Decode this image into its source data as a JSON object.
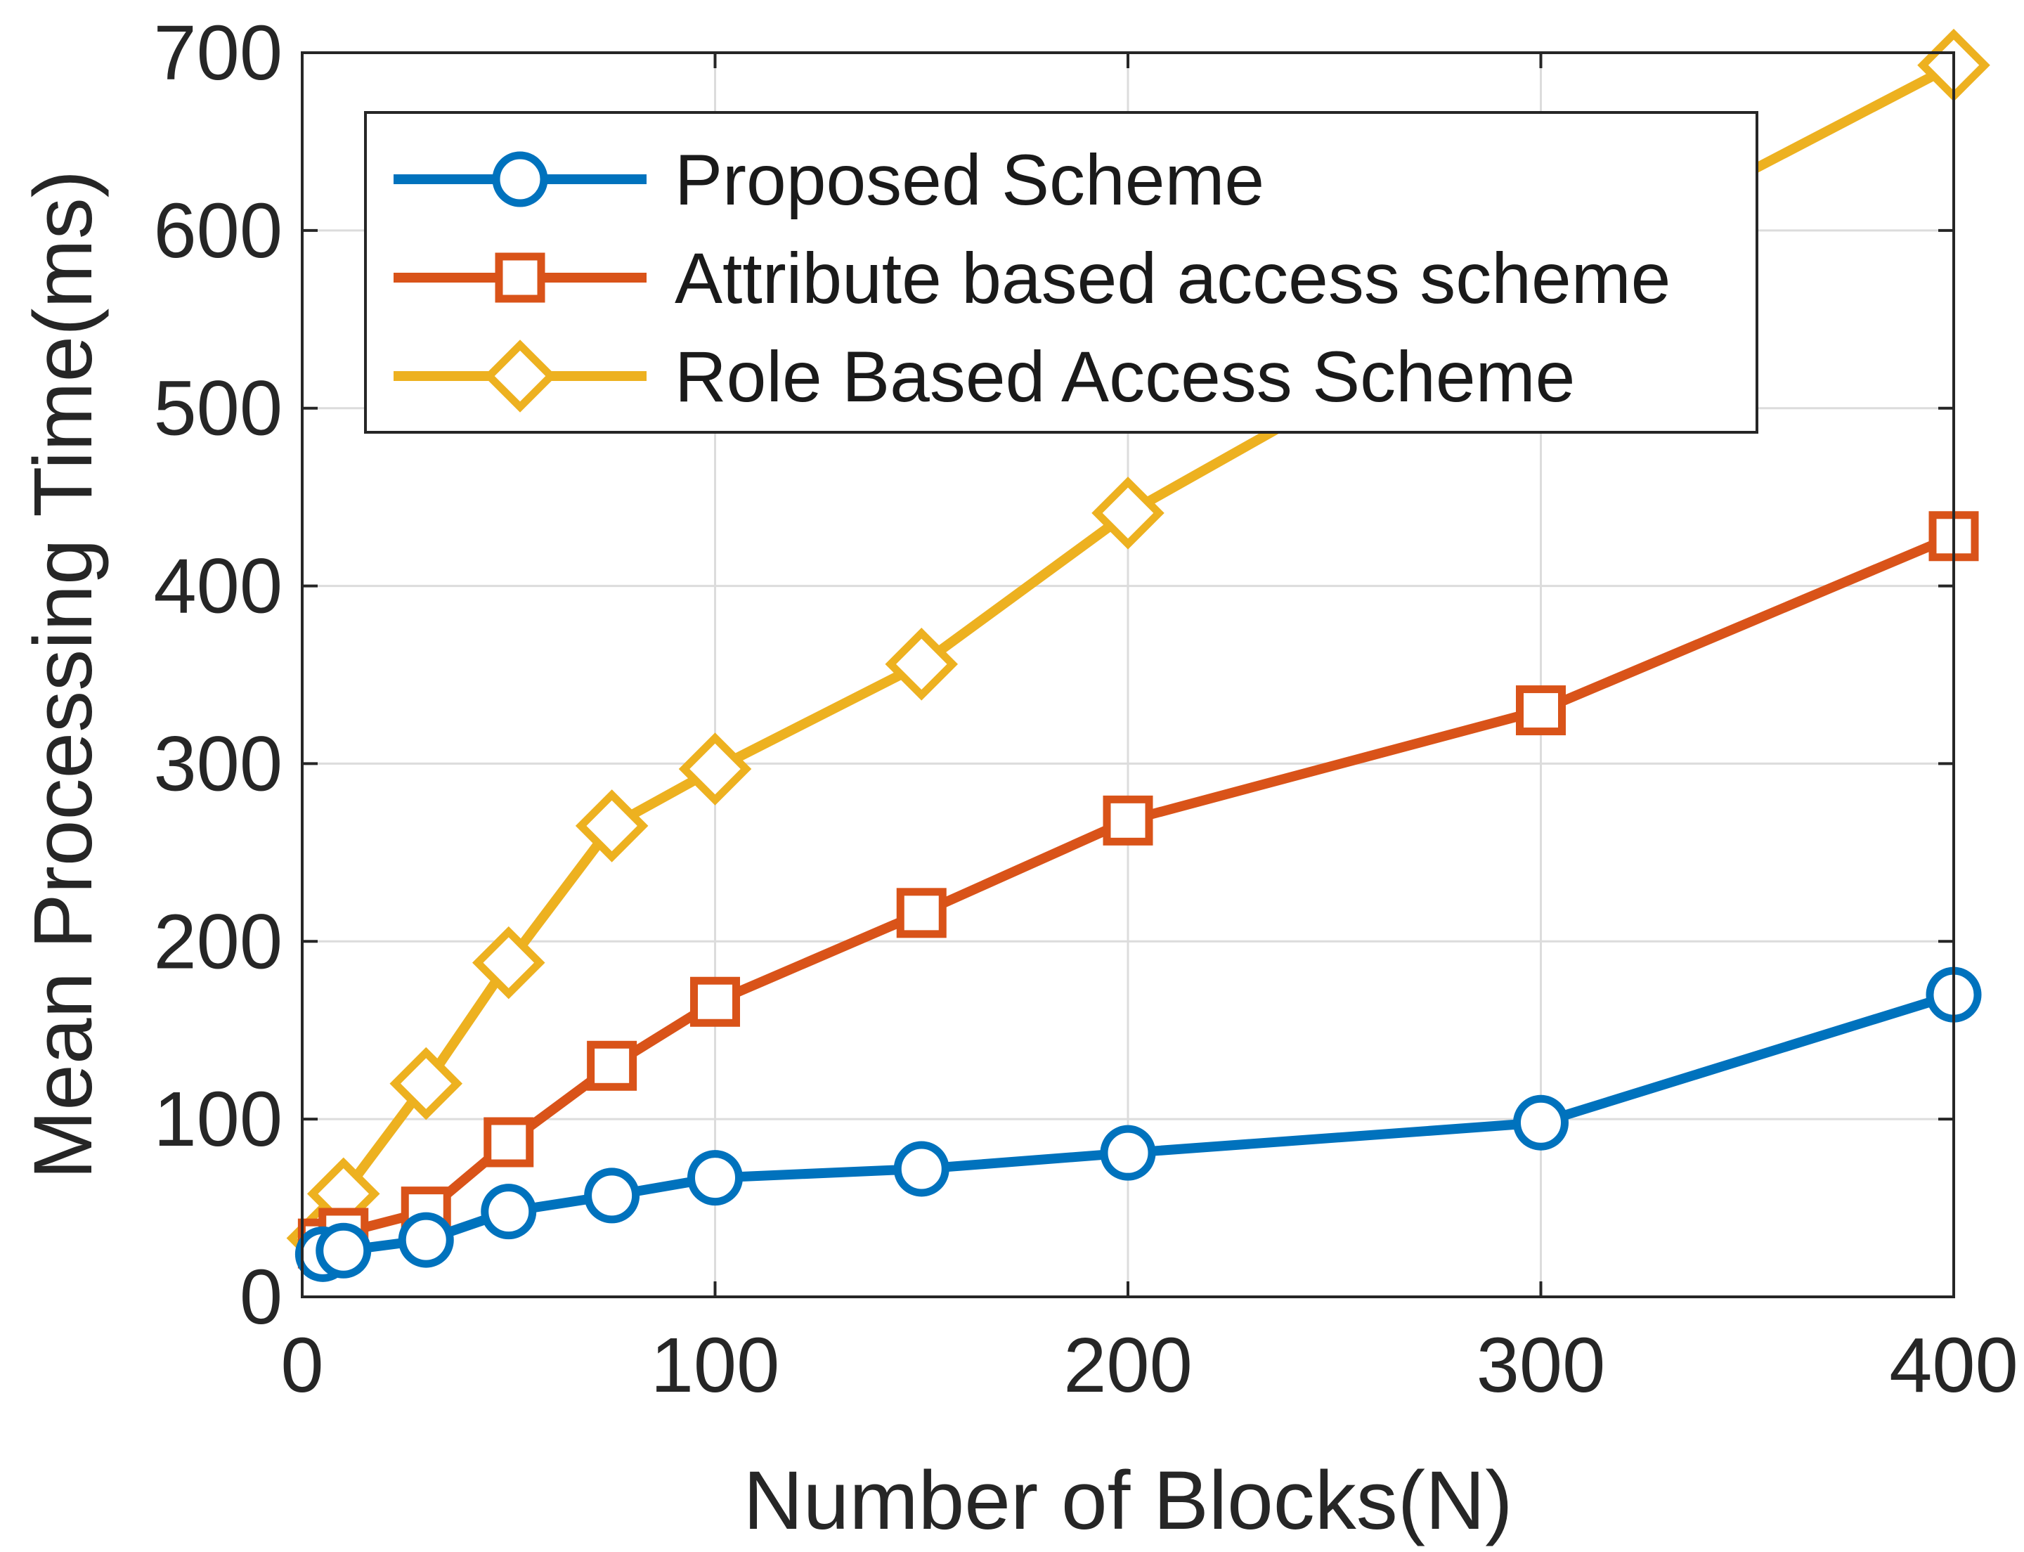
{
  "chart_data": {
    "type": "line",
    "title": "",
    "xlabel": "Number of Blocks(N)",
    "ylabel": "Mean Processing Time(ms)",
    "xlim": [
      0,
      400
    ],
    "ylim": [
      0,
      700
    ],
    "xticks": [
      0,
      100,
      200,
      300,
      400
    ],
    "yticks": [
      0,
      100,
      200,
      300,
      400,
      500,
      600,
      700
    ],
    "grid": true,
    "legend_position": "top-left",
    "series": [
      {
        "name": "Proposed Scheme",
        "color": "#0072BD",
        "marker": "circle",
        "x": [
          5,
          10,
          30,
          50,
          75,
          100,
          150,
          200,
          300,
          400
        ],
        "y": [
          24,
          26,
          32,
          48,
          57,
          67,
          72,
          81,
          98,
          170
        ]
      },
      {
        "name": "Attribute based access scheme",
        "color": "#D95319",
        "marker": "square",
        "x": [
          5,
          10,
          30,
          50,
          75,
          100,
          150,
          200,
          300,
          400
        ],
        "y": [
          30,
          36,
          48,
          87,
          130,
          166,
          216,
          268,
          330,
          428
        ]
      },
      {
        "name": "Role Based Access Scheme",
        "color": "#EDB120",
        "marker": "diamond",
        "x": [
          5,
          10,
          30,
          50,
          75,
          100,
          150,
          200,
          300,
          400
        ],
        "y": [
          33,
          58,
          120,
          188,
          265,
          297,
          356,
          441,
          572,
          693
        ]
      }
    ]
  }
}
